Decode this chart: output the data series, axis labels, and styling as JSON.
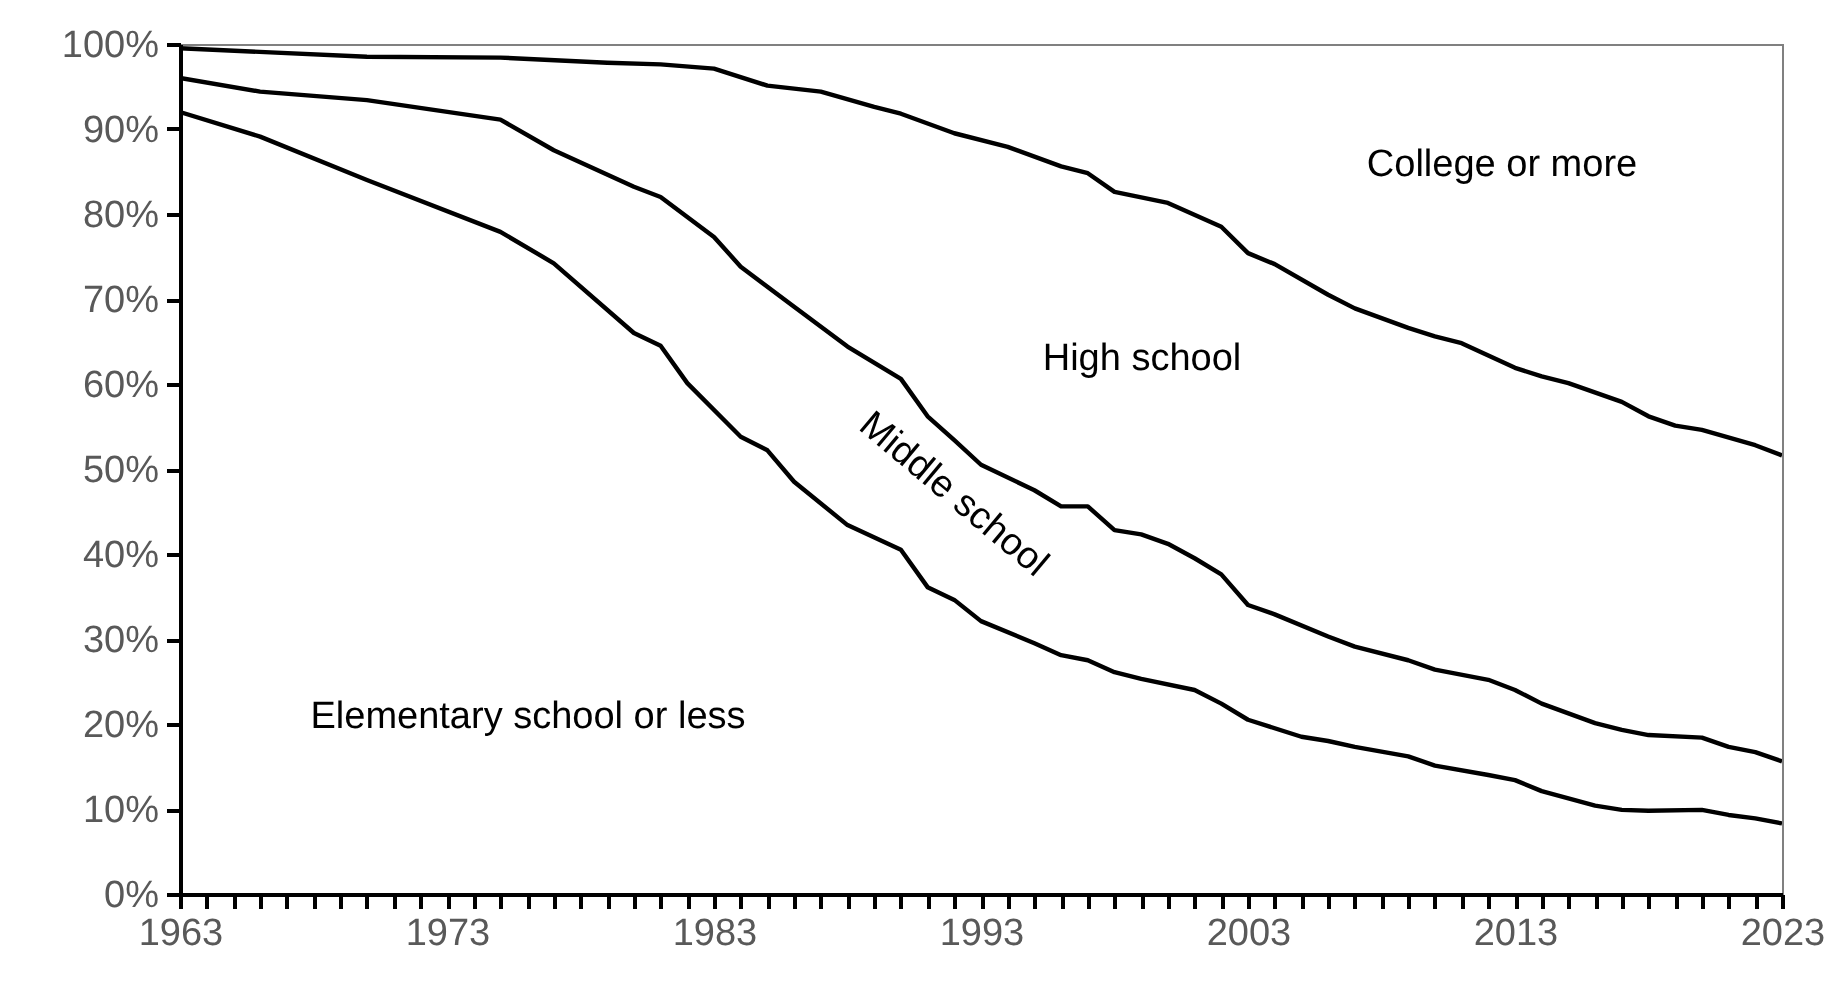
{
  "chart_data": {
    "type": "line",
    "xlim": [
      1963,
      2023
    ],
    "xticks": [
      1963,
      {
        "value": 1964,
        "label": null
      },
      {
        "value": 1965,
        "label": null
      },
      {
        "value": 1966,
        "label": null
      },
      {
        "value": 1967,
        "label": null
      },
      {
        "value": 1968,
        "label": null
      },
      {
        "value": 1969,
        "label": null
      },
      {
        "value": 1970,
        "label": null
      },
      {
        "value": 1971,
        "label": null
      },
      {
        "value": 1972,
        "label": null
      },
      1973,
      {
        "value": 1974,
        "label": null
      },
      {
        "value": 1975,
        "label": null
      },
      {
        "value": 1976,
        "label": null
      },
      {
        "value": 1977,
        "label": null
      },
      {
        "value": 1978,
        "label": null
      },
      {
        "value": 1979,
        "label": null
      },
      {
        "value": 1980,
        "label": null
      },
      {
        "value": 1981,
        "label": null
      },
      {
        "value": 1982,
        "label": null
      },
      1983,
      {
        "value": 1984,
        "label": null
      },
      {
        "value": 1985,
        "label": null
      },
      {
        "value": 1986,
        "label": null
      },
      {
        "value": 1987,
        "label": null
      },
      {
        "value": 1988,
        "label": null
      },
      {
        "value": 1989,
        "label": null
      },
      {
        "value": 1990,
        "label": null
      },
      {
        "value": 1991,
        "label": null
      },
      {
        "value": 1992,
        "label": null
      },
      1993,
      {
        "value": 1994,
        "label": null
      },
      {
        "value": 1995,
        "label": null
      },
      {
        "value": 1996,
        "label": null
      },
      {
        "value": 1997,
        "label": null
      },
      {
        "value": 1998,
        "label": null
      },
      {
        "value": 1999,
        "label": null
      },
      {
        "value": 2000,
        "label": null
      },
      {
        "value": 2001,
        "label": null
      },
      {
        "value": 2002,
        "label": null
      },
      2003,
      {
        "value": 2004,
        "label": null
      },
      {
        "value": 2005,
        "label": null
      },
      {
        "value": 2006,
        "label": null
      },
      {
        "value": 2007,
        "label": null
      },
      {
        "value": 2008,
        "label": null
      },
      {
        "value": 2009,
        "label": null
      },
      {
        "value": 2010,
        "label": null
      },
      {
        "value": 2011,
        "label": null
      },
      {
        "value": 2012,
        "label": null
      },
      2013,
      {
        "value": 2014,
        "label": null
      },
      {
        "value": 2015,
        "label": null
      },
      {
        "value": 2016,
        "label": null
      },
      {
        "value": 2017,
        "label": null
      },
      {
        "value": 2018,
        "label": null
      },
      {
        "value": 2019,
        "label": null
      },
      {
        "value": 2020,
        "label": null
      },
      {
        "value": 2021,
        "label": null
      },
      {
        "value": 2022,
        "label": null
      },
      2023
    ],
    "ylim": [
      0,
      100
    ],
    "yticks": [
      {
        "value": 0,
        "label": "0%"
      },
      {
        "value": 10,
        "label": "10%"
      },
      {
        "value": 20,
        "label": "20%"
      },
      {
        "value": 30,
        "label": "30%"
      },
      {
        "value": 40,
        "label": "40%"
      },
      {
        "value": 50,
        "label": "50%"
      },
      {
        "value": 60,
        "label": "60%"
      },
      {
        "value": 70,
        "label": "70%"
      },
      {
        "value": 80,
        "label": "80%"
      },
      {
        "value": 90,
        "label": "90%"
      },
      {
        "value": 100,
        "label": "100%"
      }
    ],
    "grid": false,
    "series": [
      {
        "color": "#000000",
        "x": [
          1963,
          1970,
          1975,
          1979,
          1981,
          1983,
          1985,
          1987,
          1989,
          1990,
          1992,
          1994,
          1996,
          1997,
          1998,
          2000,
          2002,
          2003,
          2004,
          2006,
          2007,
          2009,
          2010,
          2011,
          2013,
          2014,
          2015,
          2017,
          2018,
          2019,
          2020,
          2022,
          2023
        ],
        "values": [
          99.5,
          98.5,
          98.4,
          97.8,
          97.6,
          97.1,
          95.1,
          94.4,
          92.6,
          91.8,
          89.5,
          87.9,
          85.6,
          84.8,
          82.6,
          81.3,
          78.5,
          75.4,
          74.1,
          70.5,
          68.9,
          66.6,
          65.6,
          64.8,
          61.9,
          60.9,
          60.1,
          57.9,
          56.2,
          55.1,
          54.6,
          52.8,
          51.6
        ]
      },
      {
        "color": "#000000",
        "x": [
          1963,
          1966,
          1970,
          1975,
          1977,
          1980,
          1981,
          1983,
          1984,
          1986,
          1988,
          1990,
          1991,
          1992,
          1993,
          1995,
          1996,
          1997,
          1998,
          1999,
          2000,
          2001,
          2002,
          2003,
          2004,
          2006,
          2007,
          2009,
          2010,
          2012,
          2013,
          2014,
          2016,
          2017,
          2018,
          2020,
          2021,
          2022,
          2023
        ],
        "values": [
          96,
          94.4,
          93.4,
          91.1,
          87.5,
          83.2,
          82,
          77.3,
          73.8,
          69.1,
          64.4,
          60.6,
          56.2,
          53.4,
          50.5,
          47.5,
          45.6,
          45.6,
          42.8,
          42.3,
          41.2,
          39.5,
          37.6,
          34,
          32.9,
          30.3,
          29.1,
          27.5,
          26.4,
          25.2,
          24,
          22.4,
          20.1,
          19.3,
          18.7,
          18.4,
          17.3,
          16.7,
          15.6
        ]
      },
      {
        "color": "#000000",
        "x": [
          1963,
          1966,
          1970,
          1975,
          1977,
          1980,
          1981,
          1982,
          1984,
          1985,
          1986,
          1988,
          1990,
          1991,
          1992,
          1993,
          1995,
          1996,
          1997,
          1998,
          1999,
          2001,
          2002,
          2003,
          2005,
          2006,
          2007,
          2009,
          2010,
          2012,
          2013,
          2014,
          2016,
          2017,
          2018,
          2020,
          2021,
          2022,
          2023
        ],
        "values": [
          92,
          89.1,
          84,
          77.9,
          74.2,
          66,
          64.5,
          60.1,
          53.8,
          52.2,
          48.5,
          43.4,
          40.5,
          36.1,
          34.6,
          32.1,
          29.5,
          28.1,
          27.5,
          26.1,
          25.3,
          24,
          22.4,
          20.5,
          18.5,
          18,
          17.3,
          16.2,
          15.1,
          14,
          13.4,
          12.1,
          10.4,
          9.9,
          9.8,
          9.9,
          9.3,
          8.9,
          8.3
        ]
      }
    ],
    "annotations": [
      "College or more",
      "High school",
      "Middle school",
      "Elementary school or less"
    ]
  }
}
